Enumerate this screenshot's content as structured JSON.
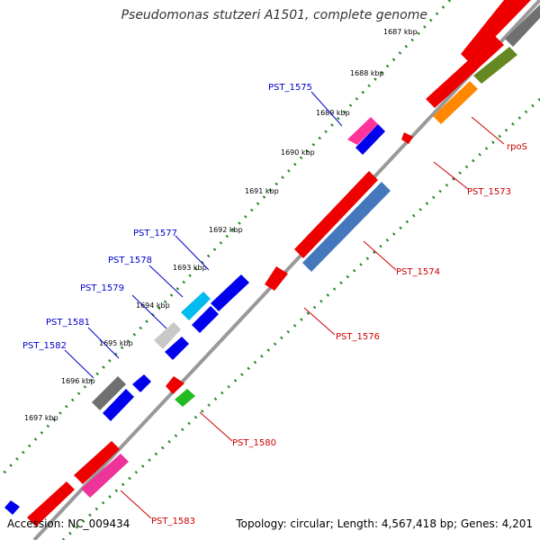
{
  "title": "Pseudomonas stutzeri A1501, complete genome",
  "footer": {
    "accession": "Accession: NC_009434",
    "summary": "Topology: circular; Length: 4,567,418 bp; Genes: 4,201"
  },
  "ticks": [
    "1687 kbp",
    "1688 kbp",
    "1689 kbp",
    "1690 kbp",
    "1691 kbp",
    "1692 kbp",
    "1693 kbp",
    "1694 kbp",
    "1695 kbp",
    "1696 kbp",
    "1697 kbp"
  ],
  "labels_reverse": [
    "PST_1575",
    "PST_1577",
    "PST_1578",
    "PST_1579",
    "PST_1581",
    "PST_1582"
  ],
  "labels_forward": [
    "rpoS",
    "PST_1573",
    "PST_1574",
    "PST_1576",
    "PST_1580",
    "PST_1583"
  ],
  "colors": {
    "forward_label": "#cc0000",
    "reverse_label": "#0000cc",
    "backbone": "#999999",
    "ruler": "#228822"
  }
}
